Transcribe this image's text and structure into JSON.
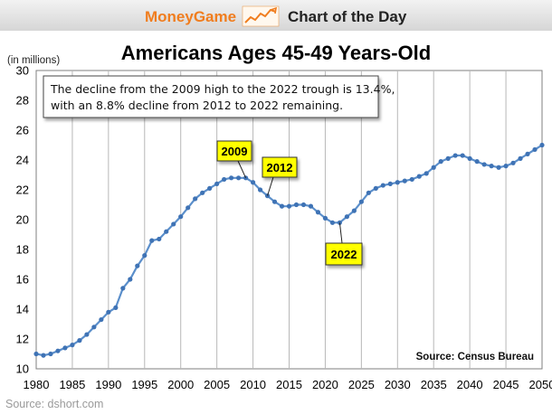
{
  "header": {
    "brand": "MoneyGame",
    "brand_icon": "rising-line-chart-icon",
    "tagline": "Chart of the Day"
  },
  "source_footer": "Source: dshort.com",
  "colors": {
    "header_orange": "#f07d1e",
    "header_gray": "#d9d9d9",
    "series": "#5b8fcb",
    "marker": "#3f73b5",
    "callout_fill": "#ffff00"
  },
  "chart_data": {
    "type": "line",
    "title": "Americans Ages 45-49 Years-Old",
    "ylabel": "(in millions)",
    "xlabel": "",
    "xlim": [
      1980,
      2050
    ],
    "ylim": [
      10,
      30
    ],
    "xticks": [
      1980,
      1985,
      1990,
      1995,
      2000,
      2005,
      2010,
      2015,
      2020,
      2025,
      2030,
      2035,
      2040,
      2045,
      2050
    ],
    "yticks": [
      10,
      12,
      14,
      16,
      18,
      20,
      22,
      24,
      26,
      28,
      30
    ],
    "grid": "vertical",
    "series": [
      {
        "x": [
          1980,
          1981,
          1982,
          1983,
          1984,
          1985,
          1986,
          1987,
          1988,
          1989,
          1990,
          1991,
          1992,
          1993,
          1994,
          1995,
          1996,
          1997,
          1998,
          1999,
          2000,
          2001,
          2002,
          2003,
          2004,
          2005,
          2006,
          2007,
          2008,
          2009,
          2010,
          2011,
          2012,
          2013,
          2014,
          2015,
          2016,
          2017,
          2018,
          2019,
          2020,
          2021,
          2022,
          2023,
          2024,
          2025,
          2026,
          2027,
          2028,
          2029,
          2030,
          2031,
          2032,
          2033,
          2034,
          2035,
          2036,
          2037,
          2038,
          2039,
          2040,
          2041,
          2042,
          2043,
          2044,
          2045,
          2046,
          2047,
          2048,
          2049,
          2050
        ],
        "values": [
          11.0,
          10.9,
          11.0,
          11.2,
          11.4,
          11.6,
          11.9,
          12.3,
          12.8,
          13.3,
          13.8,
          14.1,
          15.4,
          16.0,
          16.9,
          17.6,
          18.6,
          18.7,
          19.2,
          19.7,
          20.2,
          20.8,
          21.4,
          21.8,
          22.1,
          22.4,
          22.7,
          22.8,
          22.8,
          22.8,
          22.5,
          22.0,
          21.6,
          21.2,
          20.9,
          20.9,
          21.0,
          21.0,
          20.9,
          20.5,
          20.1,
          19.8,
          19.8,
          20.2,
          20.6,
          21.2,
          21.8,
          22.1,
          22.3,
          22.4,
          22.5,
          22.6,
          22.7,
          22.9,
          23.1,
          23.5,
          23.9,
          24.1,
          24.3,
          24.3,
          24.1,
          23.9,
          23.7,
          23.6,
          23.5,
          23.6,
          23.8,
          24.1,
          24.4,
          24.7,
          25.0
        ]
      }
    ],
    "annotation_box": {
      "line1": "The decline from the 2009 high to the 2022 trough is 13.4%,",
      "line2": "with an 8.8% decline from 2012 to 2022 remaining."
    },
    "callouts": [
      {
        "label": "2009",
        "x": 2009,
        "y": 22.8
      },
      {
        "label": "2012",
        "x": 2012,
        "y": 21.6
      },
      {
        "label": "2022",
        "x": 2022,
        "y": 19.8
      }
    ],
    "source_note": "Source: Census Bureau"
  }
}
